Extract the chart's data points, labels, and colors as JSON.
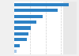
{
  "values": [
    4527,
    3607,
    2384,
    1856,
    1350,
    1200,
    1050,
    490,
    180
  ],
  "bar_color": "#2e82c5",
  "last_bar_color": "#a8c8e8",
  "background_color": "#f0f0f0",
  "plot_bg_color": "#ffffff",
  "right_bg_color": "#e8e8e8",
  "grid_color": "#d0d0d0",
  "bar_height": 0.55,
  "xlim": [
    0,
    5200
  ]
}
